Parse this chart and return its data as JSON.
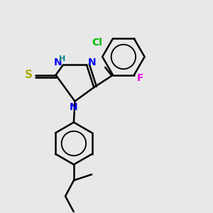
{
  "background_color": "#e8e8e8",
  "atom_colors": {
    "N": "#0000ee",
    "S": "#aaaa00",
    "Cl": "#00bb00",
    "F": "#ee00ee",
    "H": "#008888",
    "C": "#000000"
  },
  "font_size": 10,
  "line_width": 1.8,
  "figure_size": [
    3.0,
    3.0
  ],
  "dpi": 100
}
